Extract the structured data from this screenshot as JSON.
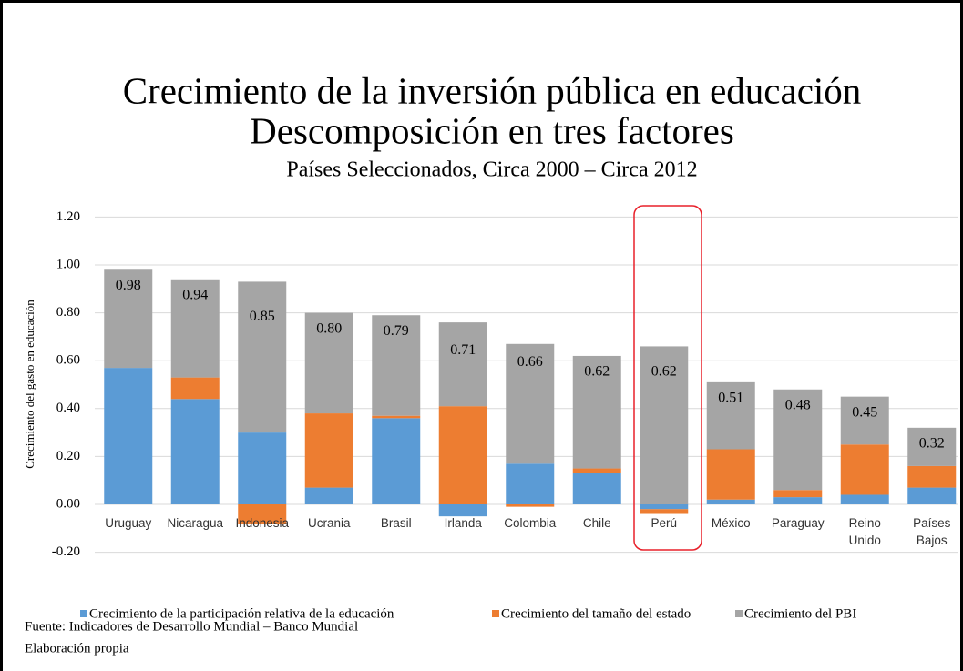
{
  "chart_data": {
    "type": "stacked_bar",
    "title": "Crecimiento de la inversión pública en educación",
    "title_line2": "Descomposición en tres factores",
    "subtitle": "Países Seleccionados, Circa 2000 – Circa 2012",
    "y_axis_label": "Crecimiento del gasto en educación",
    "categories": [
      "Uruguay",
      "Nicaragua",
      "Indonesia",
      "Ucrania",
      "Brasil",
      "Irlanda",
      "Colombia",
      "Chile",
      "Perú",
      "México",
      "Paraguay",
      "Reino Unido",
      "Países Bajos"
    ],
    "series": [
      {
        "name": "Crecimiento de la participación relativa de la educación",
        "color": "#5b9bd5",
        "values": [
          0.57,
          0.44,
          0.3,
          0.07,
          0.36,
          -0.05,
          0.17,
          0.13,
          -0.02,
          0.02,
          0.03,
          0.04,
          0.07
        ]
      },
      {
        "name": "Crecimiento del tamaño del estado",
        "color": "#ed7d31",
        "values": [
          0,
          0.09,
          -0.08,
          0.31,
          0.01,
          0.41,
          -0.01,
          0.02,
          -0.02,
          0.21,
          0.03,
          0.21,
          0.09
        ]
      },
      {
        "name": "Crecimiento del PBI",
        "color": "#a5a5a5",
        "values": [
          0.41,
          0.41,
          0.63,
          0.42,
          0.42,
          0.35,
          0.5,
          0.47,
          0.66,
          0.28,
          0.42,
          0.2,
          0.16
        ]
      }
    ],
    "totals": [
      0.98,
      0.94,
      0.85,
      0.8,
      0.79,
      0.71,
      0.66,
      0.62,
      0.62,
      0.51,
      0.48,
      0.45,
      0.32
    ],
    "total_labels": [
      "0.98",
      "0.94",
      "0.85",
      "0.80",
      "0.79",
      "0.71",
      "0.66",
      "0.62",
      "0.62",
      "0.51",
      "0.48",
      "0.45",
      "0.32"
    ],
    "ylim": [
      -0.2,
      1.2
    ],
    "yticks": [
      {
        "value": -0.2,
        "label": "-0.20"
      },
      {
        "value": 0,
        "label": "0.00"
      },
      {
        "value": 0.2,
        "label": "0.20"
      },
      {
        "value": 0.4,
        "label": "0.40"
      },
      {
        "value": 0.6,
        "label": "0.60"
      },
      {
        "value": 0.8,
        "label": "0.80"
      },
      {
        "value": 1,
        "label": "1.00"
      },
      {
        "value": 1.2,
        "label": "1.20"
      }
    ],
    "grid": true,
    "legend": "bottom",
    "source": "Fuente: Indicadores de Desarrollo Mundial – Banco Mundial",
    "note": "Elaboración propia"
  }
}
